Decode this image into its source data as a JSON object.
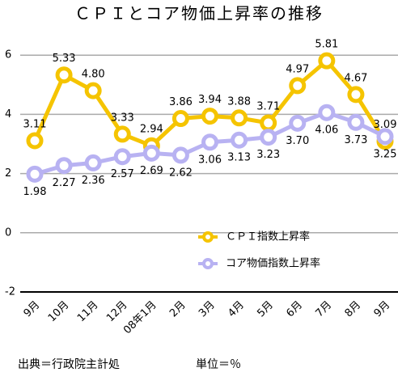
{
  "chart_data": {
    "type": "line",
    "title": "ＣＰＩとコア物価上昇率の推移",
    "source": "出典＝行政院主計処",
    "unit": "単位＝％",
    "categories": [
      "9月",
      "10月",
      "11月",
      "12月",
      "08年1月",
      "2月",
      "3月",
      "4月",
      "5月",
      "6月",
      "7月",
      "8月",
      "9月"
    ],
    "series": [
      {
        "name": "ＣＰＩ指数上昇率",
        "color": "#f5c400",
        "label_side": "above",
        "values": [
          3.11,
          5.33,
          4.8,
          3.33,
          2.94,
          3.86,
          3.94,
          3.88,
          3.71,
          4.97,
          5.81,
          4.67,
          3.09
        ],
        "value_labels": [
          "3.11",
          "5.33",
          "4.80",
          "3.33",
          "2.94",
          "3.86",
          "3.94",
          "3.88",
          "3.71",
          "4.97",
          "5.81",
          "4.67",
          "3.09"
        ]
      },
      {
        "name": "コア物価指数上昇率",
        "color": "#b8b2f2",
        "label_side": "below",
        "values": [
          1.98,
          2.27,
          2.36,
          2.57,
          2.69,
          2.62,
          3.06,
          3.13,
          3.23,
          3.7,
          4.06,
          3.73,
          3.25
        ],
        "value_labels": [
          "1.98",
          "2.27",
          "2.36",
          "2.57",
          "2.69",
          "2.62",
          "3.06",
          "3.13",
          "3.23",
          "3.70",
          "4.06",
          "3.73",
          "3.25"
        ]
      }
    ],
    "ylim": [
      -2,
      7
    ],
    "yticks": [
      -2,
      0,
      2,
      4,
      6
    ],
    "grid": true,
    "legend": "lower right"
  }
}
